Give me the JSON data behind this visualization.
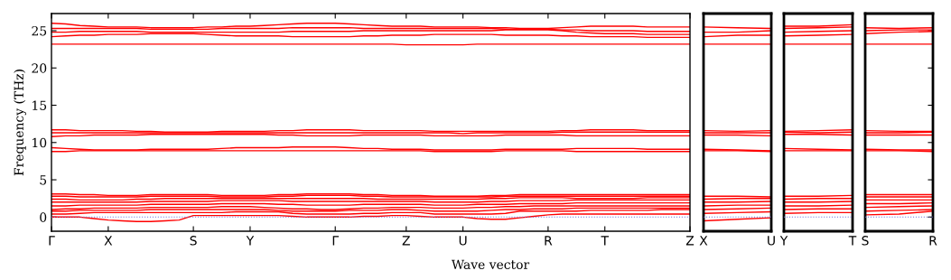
{
  "chart_data": [
    {
      "type": "line",
      "ylabel": "Frequency (THz)",
      "xlabel": "Wave vector",
      "categories": [
        "Γ",
        null,
        null,
        null,
        "X",
        null,
        null,
        null,
        null,
        null,
        "S",
        null,
        null,
        null,
        "Y",
        null,
        null,
        null,
        null,
        null,
        "Γ",
        null,
        null,
        null,
        null,
        "Z",
        null,
        null,
        null,
        "U",
        null,
        null,
        null,
        null,
        null,
        "R",
        null,
        null,
        null,
        "T",
        null,
        null,
        null,
        null,
        null,
        "Z"
      ],
      "ylim": [
        -1.9,
        27.3
      ],
      "yticks": [
        0,
        5,
        10,
        15,
        20,
        25
      ],
      "ref_lines": [
        {
          "axis": "y",
          "value": 0,
          "color": "#6f6fd8",
          "line_style": "dotted"
        }
      ],
      "series": [
        {
          "color": "#ff0000",
          "values": [
            0,
            0,
            0,
            -0.2,
            -0.4,
            -0.5,
            -0.6,
            -0.6,
            -0.5,
            -0.4,
            0.2,
            0.2,
            0.2,
            0.2,
            0.2,
            0.2,
            0.2,
            0.1,
            0,
            0,
            0,
            0,
            0.1,
            0.1,
            0.2,
            0.2,
            0.1,
            0,
            0,
            0,
            -0.2,
            -0.3,
            -0.3,
            -0.1,
            0.1,
            0.3,
            0.4,
            0.4,
            0.4,
            0.4,
            0.4,
            0.4,
            0.4,
            0.4,
            0.4,
            0.4
          ]
        },
        {
          "color": "#ff0000",
          "values": [
            0.4,
            0.4,
            0.5,
            0.6,
            0.6,
            0.6,
            0.6,
            0.6,
            0.6,
            0.6,
            0.6,
            0.6,
            0.6,
            0.7,
            0.7,
            0.7,
            0.7,
            0.5,
            0.4,
            0.4,
            0.4,
            0.4,
            0.5,
            0.5,
            0.6,
            0.6,
            0.6,
            0.4,
            0.4,
            0.4,
            0.4,
            0.4,
            0.5,
            0.8,
            0.8,
            0.8,
            0.8,
            0.8,
            0.9,
            0.9,
            0.9,
            0.9,
            0.9,
            1.0,
            1.0,
            1.0
          ]
        },
        {
          "color": "#ff0000",
          "values": [
            0.8,
            0.8,
            0.9,
            0.9,
            0.9,
            0.9,
            0.9,
            1.0,
            1.0,
            1.0,
            1.0,
            1.0,
            1.0,
            1.0,
            1.0,
            1.0,
            0.9,
            0.8,
            0.8,
            0.8,
            0.8,
            0.9,
            0.9,
            0.9,
            1.0,
            1.0,
            0.9,
            0.8,
            0.8,
            0.8,
            0.8,
            0.9,
            1.0,
            1.0,
            1.1,
            1.1,
            1.1,
            1.2,
            1.2,
            1.2,
            1.2,
            1.2,
            1.2,
            1.2,
            1.2,
            1.2
          ]
        },
        {
          "color": "#ff0000",
          "values": [
            1.0,
            1.1,
            1.1,
            1.2,
            1.2,
            1.2,
            1.2,
            1.3,
            1.3,
            1.3,
            1.3,
            1.3,
            1.4,
            1.4,
            1.4,
            1.3,
            1.2,
            1.1,
            1.1,
            1.0,
            1.0,
            1.1,
            1.2,
            1.2,
            1.3,
            1.3,
            1.3,
            1.2,
            1.2,
            1.2,
            1.3,
            1.3,
            1.4,
            1.4,
            1.5,
            1.5,
            1.5,
            1.5,
            1.5,
            1.5,
            1.5,
            1.5,
            1.5,
            1.5,
            1.5,
            1.5
          ]
        },
        {
          "color": "#ff0000",
          "values": [
            1.5,
            1.5,
            1.6,
            1.6,
            1.6,
            1.6,
            1.6,
            1.7,
            1.7,
            1.7,
            1.7,
            1.7,
            1.8,
            1.8,
            1.8,
            1.8,
            1.7,
            1.7,
            1.6,
            1.6,
            1.6,
            1.6,
            1.7,
            1.7,
            1.7,
            1.7,
            1.7,
            1.6,
            1.6,
            1.6,
            1.7,
            1.7,
            1.7,
            1.8,
            1.8,
            1.8,
            1.8,
            1.9,
            1.9,
            1.9,
            1.9,
            1.9,
            1.9,
            1.9,
            1.9,
            1.9
          ]
        },
        {
          "color": "#ff0000",
          "values": [
            2.0,
            2.0,
            2.0,
            2.0,
            2.0,
            2.0,
            2.0,
            2.1,
            2.1,
            2.1,
            2.1,
            2.1,
            2.2,
            2.2,
            2.2,
            2.2,
            2.2,
            2.1,
            2.1,
            2.1,
            2.1,
            2.1,
            2.1,
            2.1,
            2.1,
            2.1,
            2.1,
            2.0,
            2.0,
            2.0,
            2.0,
            2.1,
            2.1,
            2.2,
            2.2,
            2.2,
            2.2,
            2.3,
            2.3,
            2.3,
            2.3,
            2.3,
            2.3,
            2.3,
            2.3,
            2.3
          ]
        },
        {
          "color": "#ff0000",
          "values": [
            2.4,
            2.4,
            2.3,
            2.3,
            2.3,
            2.3,
            2.4,
            2.4,
            2.5,
            2.5,
            2.5,
            2.5,
            2.5,
            2.5,
            2.5,
            2.5,
            2.5,
            2.5,
            2.5,
            2.5,
            2.5,
            2.5,
            2.5,
            2.4,
            2.4,
            2.4,
            2.4,
            2.4,
            2.4,
            2.4,
            2.4,
            2.5,
            2.5,
            2.6,
            2.6,
            2.6,
            2.6,
            2.5,
            2.5,
            2.5,
            2.5,
            2.5,
            2.6,
            2.6,
            2.6,
            2.6
          ]
        },
        {
          "color": "#ff0000",
          "values": [
            2.8,
            2.8,
            2.7,
            2.7,
            2.7,
            2.7,
            2.7,
            2.8,
            2.8,
            2.8,
            2.8,
            2.8,
            2.7,
            2.7,
            2.7,
            2.7,
            2.8,
            2.8,
            2.9,
            2.9,
            2.9,
            2.9,
            2.8,
            2.8,
            2.7,
            2.7,
            2.7,
            2.7,
            2.7,
            2.7,
            2.7,
            2.7,
            2.8,
            2.8,
            2.8,
            2.8,
            2.8,
            2.8,
            2.8,
            2.8,
            2.8,
            2.8,
            2.8,
            2.8,
            2.8,
            2.8
          ]
        },
        {
          "color": "#ff0000",
          "values": [
            3.1,
            3.1,
            3.0,
            3.0,
            2.9,
            2.9,
            2.9,
            3.0,
            3.0,
            3.0,
            3.0,
            3.0,
            2.9,
            2.9,
            2.9,
            2.9,
            3.0,
            3.0,
            3.1,
            3.1,
            3.1,
            3.1,
            3.0,
            3.0,
            2.9,
            2.9,
            2.9,
            2.8,
            2.8,
            2.8,
            2.8,
            2.9,
            2.9,
            3.0,
            3.0,
            3.0,
            3.0,
            3.0,
            3.0,
            3.0,
            3.0,
            3.0,
            3.0,
            3.0,
            3.0,
            3.0
          ]
        },
        {
          "color": "#ff0000",
          "values": [
            8.8,
            8.8,
            8.9,
            8.9,
            8.9,
            8.9,
            8.9,
            8.9,
            8.9,
            8.9,
            8.9,
            8.9,
            8.9,
            8.9,
            8.9,
            8.9,
            8.9,
            8.9,
            8.9,
            8.9,
            8.9,
            8.9,
            8.9,
            8.9,
            8.9,
            8.9,
            8.9,
            8.8,
            8.8,
            8.8,
            8.8,
            8.8,
            8.9,
            8.9,
            8.9,
            8.9,
            8.9,
            8.8,
            8.8,
            8.8,
            8.8,
            8.8,
            8.8,
            8.8,
            8.8,
            8.8
          ]
        },
        {
          "color": "#ff0000",
          "values": [
            9.3,
            9.2,
            9.1,
            9.0,
            9.0,
            9.0,
            9.0,
            9.1,
            9.1,
            9.1,
            9.1,
            9.1,
            9.2,
            9.3,
            9.3,
            9.3,
            9.3,
            9.4,
            9.4,
            9.4,
            9.4,
            9.3,
            9.2,
            9.2,
            9.1,
            9.1,
            9.1,
            9.0,
            9.0,
            9.0,
            9.0,
            9.0,
            9.1,
            9.1,
            9.1,
            9.1,
            9.1,
            9.2,
            9.2,
            9.2,
            9.2,
            9.2,
            9.1,
            9.1,
            9.1,
            9.1
          ]
        },
        {
          "color": "#ff0000",
          "values": [
            10.8,
            10.9,
            10.9,
            11.0,
            11.0,
            11.0,
            11.0,
            11.1,
            11.1,
            11.1,
            11.1,
            11.1,
            11.1,
            11.1,
            11.1,
            11.1,
            11.0,
            11.0,
            10.9,
            10.9,
            10.9,
            10.9,
            11.0,
            11.0,
            11.0,
            11.0,
            11.0,
            10.9,
            10.9,
            10.9,
            10.9,
            10.9,
            11.0,
            11.0,
            11.0,
            11.0,
            11.0,
            10.9,
            10.9,
            10.9,
            10.9,
            10.9,
            10.9,
            10.9,
            10.9,
            10.9
          ]
        },
        {
          "color": "#ff0000",
          "values": [
            11.3,
            11.3,
            11.3,
            11.3,
            11.3,
            11.3,
            11.3,
            11.3,
            11.3,
            11.3,
            11.3,
            11.3,
            11.3,
            11.3,
            11.3,
            11.3,
            11.3,
            11.3,
            11.3,
            11.3,
            11.3,
            11.3,
            11.3,
            11.3,
            11.3,
            11.3,
            11.3,
            11.3,
            11.3,
            11.2,
            11.3,
            11.3,
            11.3,
            11.3,
            11.3,
            11.3,
            11.4,
            11.4,
            11.4,
            11.4,
            11.4,
            11.4,
            11.4,
            11.4,
            11.4,
            11.4
          ]
        },
        {
          "color": "#ff0000",
          "values": [
            11.7,
            11.7,
            11.6,
            11.6,
            11.6,
            11.6,
            11.5,
            11.5,
            11.4,
            11.4,
            11.4,
            11.4,
            11.5,
            11.5,
            11.5,
            11.5,
            11.6,
            11.6,
            11.7,
            11.7,
            11.7,
            11.7,
            11.6,
            11.6,
            11.6,
            11.6,
            11.6,
            11.5,
            11.5,
            11.5,
            11.5,
            11.5,
            11.5,
            11.5,
            11.5,
            11.5,
            11.6,
            11.6,
            11.7,
            11.7,
            11.7,
            11.7,
            11.6,
            11.6,
            11.6,
            11.6
          ]
        },
        {
          "color": "#ff0000",
          "values": [
            23.2,
            23.2,
            23.2,
            23.2,
            23.2,
            23.2,
            23.2,
            23.2,
            23.2,
            23.2,
            23.2,
            23.2,
            23.2,
            23.2,
            23.2,
            23.2,
            23.2,
            23.2,
            23.2,
            23.2,
            23.2,
            23.2,
            23.2,
            23.2,
            23.2,
            23.1,
            23.1,
            23.1,
            23.1,
            23.1,
            23.2,
            23.2,
            23.2,
            23.2,
            23.2,
            23.2,
            23.2,
            23.2,
            23.2,
            23.2,
            23.2,
            23.2,
            23.2,
            23.2,
            23.2,
            23.2
          ]
        },
        {
          "color": "#ff0000",
          "values": [
            24.2,
            24.3,
            24.4,
            24.4,
            24.5,
            24.5,
            24.5,
            24.6,
            24.6,
            24.6,
            24.6,
            24.5,
            24.4,
            24.3,
            24.3,
            24.3,
            24.3,
            24.2,
            24.2,
            24.2,
            24.2,
            24.2,
            24.3,
            24.3,
            24.4,
            24.4,
            24.4,
            24.5,
            24.5,
            24.5,
            24.5,
            24.5,
            24.4,
            24.4,
            24.4,
            24.4,
            24.3,
            24.3,
            24.2,
            24.2,
            24.2,
            24.2,
            24.1,
            24.1,
            24.1,
            24.1
          ]
        },
        {
          "color": "#ff0000",
          "values": [
            24.8,
            24.8,
            24.9,
            24.9,
            24.9,
            24.9,
            24.9,
            24.8,
            24.8,
            24.8,
            24.8,
            24.8,
            24.8,
            24.8,
            24.8,
            24.8,
            24.8,
            24.9,
            24.9,
            24.9,
            24.9,
            24.9,
            25.0,
            25.0,
            25.0,
            25.0,
            25.0,
            25.0,
            25.0,
            25.0,
            25.0,
            25.0,
            25.1,
            25.1,
            25.1,
            25.1,
            25.0,
            24.8,
            24.7,
            24.6,
            24.6,
            24.6,
            24.5,
            24.5,
            24.5,
            24.5
          ]
        },
        {
          "color": "#ff0000",
          "values": [
            25.3,
            25.3,
            25.3,
            25.3,
            25.3,
            25.3,
            25.3,
            25.2,
            25.2,
            25.2,
            25.2,
            25.2,
            25.3,
            25.3,
            25.3,
            25.3,
            25.3,
            25.4,
            25.4,
            25.4,
            25.4,
            25.4,
            25.3,
            25.3,
            25.3,
            25.3,
            25.3,
            25.3,
            25.3,
            25.3,
            25.3,
            25.3,
            25.2,
            25.2,
            25.2,
            25.2,
            25.1,
            25.1,
            25.0,
            25.0,
            25.0,
            25.0,
            24.9,
            24.9,
            24.9,
            24.9
          ]
        },
        {
          "color": "#ff0000",
          "values": [
            26.0,
            25.9,
            25.7,
            25.6,
            25.5,
            25.5,
            25.5,
            25.4,
            25.4,
            25.4,
            25.4,
            25.5,
            25.5,
            25.6,
            25.6,
            25.7,
            25.8,
            25.9,
            26.0,
            26.0,
            26.0,
            25.9,
            25.8,
            25.7,
            25.6,
            25.6,
            25.6,
            25.5,
            25.5,
            25.5,
            25.5,
            25.4,
            25.4,
            25.3,
            25.3,
            25.3,
            25.4,
            25.5,
            25.6,
            25.6,
            25.6,
            25.6,
            25.5,
            25.5,
            25.5,
            25.5
          ]
        }
      ]
    },
    {
      "type": "line",
      "categories": [
        "X",
        null,
        "U"
      ],
      "ylim": [
        -1.9,
        27.3
      ],
      "yticks": [
        0,
        5,
        10,
        15,
        20,
        25
      ],
      "tick_labels": "x",
      "ref_lines": [
        {
          "axis": "y",
          "value": 0,
          "color": "#6f6fd8",
          "line_style": "dotted"
        }
      ],
      "series": [
        {
          "color": "#ff0000",
          "values": [
            -0.5,
            -0.3,
            -0.1
          ]
        },
        {
          "color": "#ff0000",
          "values": [
            0.5,
            0.6,
            0.7
          ]
        },
        {
          "color": "#ff0000",
          "values": [
            1.0,
            1.1,
            1.2
          ]
        },
        {
          "color": "#ff0000",
          "values": [
            1.5,
            1.6,
            1.6
          ]
        },
        {
          "color": "#ff0000",
          "values": [
            2.0,
            2.0,
            2.1
          ]
        },
        {
          "color": "#ff0000",
          "values": [
            2.4,
            2.5,
            2.5
          ]
        },
        {
          "color": "#ff0000",
          "values": [
            2.8,
            2.8,
            2.7
          ]
        },
        {
          "color": "#ff0000",
          "values": [
            8.9,
            8.9,
            8.8
          ]
        },
        {
          "color": "#ff0000",
          "values": [
            9.1,
            9.0,
            8.9
          ]
        },
        {
          "color": "#ff0000",
          "values": [
            11.0,
            11.0,
            10.9
          ]
        },
        {
          "color": "#ff0000",
          "values": [
            11.3,
            11.3,
            11.3
          ]
        },
        {
          "color": "#ff0000",
          "values": [
            11.6,
            11.5,
            11.6
          ]
        },
        {
          "color": "#ff0000",
          "values": [
            23.2,
            23.2,
            23.2
          ]
        },
        {
          "color": "#ff0000",
          "values": [
            24.2,
            24.4,
            24.4
          ]
        },
        {
          "color": "#ff0000",
          "values": [
            24.8,
            24.8,
            25.0
          ]
        },
        {
          "color": "#ff0000",
          "values": [
            25.5,
            25.4,
            25.3
          ]
        }
      ]
    },
    {
      "type": "line",
      "categories": [
        "Y",
        null,
        "T"
      ],
      "ylim": [
        -1.9,
        27.3
      ],
      "yticks": [
        0,
        5,
        10,
        15,
        20,
        25
      ],
      "tick_labels": "x",
      "ref_lines": [
        {
          "axis": "y",
          "value": 0,
          "color": "#6f6fd8",
          "line_style": "dotted"
        }
      ],
      "series": [
        {
          "color": "#ff0000",
          "values": [
            0.5,
            0.6,
            0.6
          ]
        },
        {
          "color": "#ff0000",
          "values": [
            1.0,
            1.1,
            1.1
          ]
        },
        {
          "color": "#ff0000",
          "values": [
            1.5,
            1.5,
            1.6
          ]
        },
        {
          "color": "#ff0000",
          "values": [
            2.0,
            2.0,
            2.1
          ]
        },
        {
          "color": "#ff0000",
          "values": [
            2.4,
            2.5,
            2.5
          ]
        },
        {
          "color": "#ff0000",
          "values": [
            2.8,
            2.8,
            2.9
          ]
        },
        {
          "color": "#ff0000",
          "values": [
            8.9,
            8.9,
            8.9
          ]
        },
        {
          "color": "#ff0000",
          "values": [
            9.2,
            9.1,
            9.0
          ]
        },
        {
          "color": "#ff0000",
          "values": [
            11.1,
            11.1,
            11.0
          ]
        },
        {
          "color": "#ff0000",
          "values": [
            11.4,
            11.3,
            11.4
          ]
        },
        {
          "color": "#ff0000",
          "values": [
            11.5,
            11.6,
            11.7
          ]
        },
        {
          "color": "#ff0000",
          "values": [
            23.2,
            23.2,
            23.2
          ]
        },
        {
          "color": "#ff0000",
          "values": [
            24.3,
            24.4,
            24.5
          ]
        },
        {
          "color": "#ff0000",
          "values": [
            24.8,
            24.9,
            25.0
          ]
        },
        {
          "color": "#ff0000",
          "values": [
            25.3,
            25.4,
            25.5
          ]
        },
        {
          "color": "#ff0000",
          "values": [
            25.6,
            25.6,
            25.8
          ]
        }
      ]
    },
    {
      "type": "line",
      "categories": [
        "S",
        null,
        "R"
      ],
      "ylim": [
        -1.9,
        27.3
      ],
      "yticks": [
        0,
        5,
        10,
        15,
        20,
        25
      ],
      "tick_labels": "x",
      "ref_lines": [
        {
          "axis": "y",
          "value": 0,
          "color": "#6f6fd8",
          "line_style": "dotted"
        }
      ],
      "series": [
        {
          "color": "#ff0000",
          "values": [
            0.3,
            0.4,
            0.8
          ]
        },
        {
          "color": "#ff0000",
          "values": [
            0.8,
            0.9,
            1.0
          ]
        },
        {
          "color": "#ff0000",
          "values": [
            1.3,
            1.4,
            1.5
          ]
        },
        {
          "color": "#ff0000",
          "values": [
            1.8,
            1.8,
            1.9
          ]
        },
        {
          "color": "#ff0000",
          "values": [
            2.3,
            2.3,
            2.3
          ]
        },
        {
          "color": "#ff0000",
          "values": [
            2.7,
            2.7,
            2.7
          ]
        },
        {
          "color": "#ff0000",
          "values": [
            3.0,
            3.0,
            3.0
          ]
        },
        {
          "color": "#ff0000",
          "values": [
            8.9,
            8.9,
            8.8
          ]
        },
        {
          "color": "#ff0000",
          "values": [
            9.1,
            9.0,
            9.0
          ]
        },
        {
          "color": "#ff0000",
          "values": [
            11.0,
            11.0,
            11.0
          ]
        },
        {
          "color": "#ff0000",
          "values": [
            11.3,
            11.3,
            11.4
          ]
        },
        {
          "color": "#ff0000",
          "values": [
            11.6,
            11.5,
            11.5
          ]
        },
        {
          "color": "#ff0000",
          "values": [
            23.2,
            23.2,
            23.2
          ]
        },
        {
          "color": "#ff0000",
          "values": [
            24.6,
            24.8,
            24.9
          ]
        },
        {
          "color": "#ff0000",
          "values": [
            25.0,
            25.1,
            25.1
          ]
        },
        {
          "color": "#ff0000",
          "values": [
            25.4,
            25.3,
            25.4
          ]
        }
      ]
    }
  ]
}
